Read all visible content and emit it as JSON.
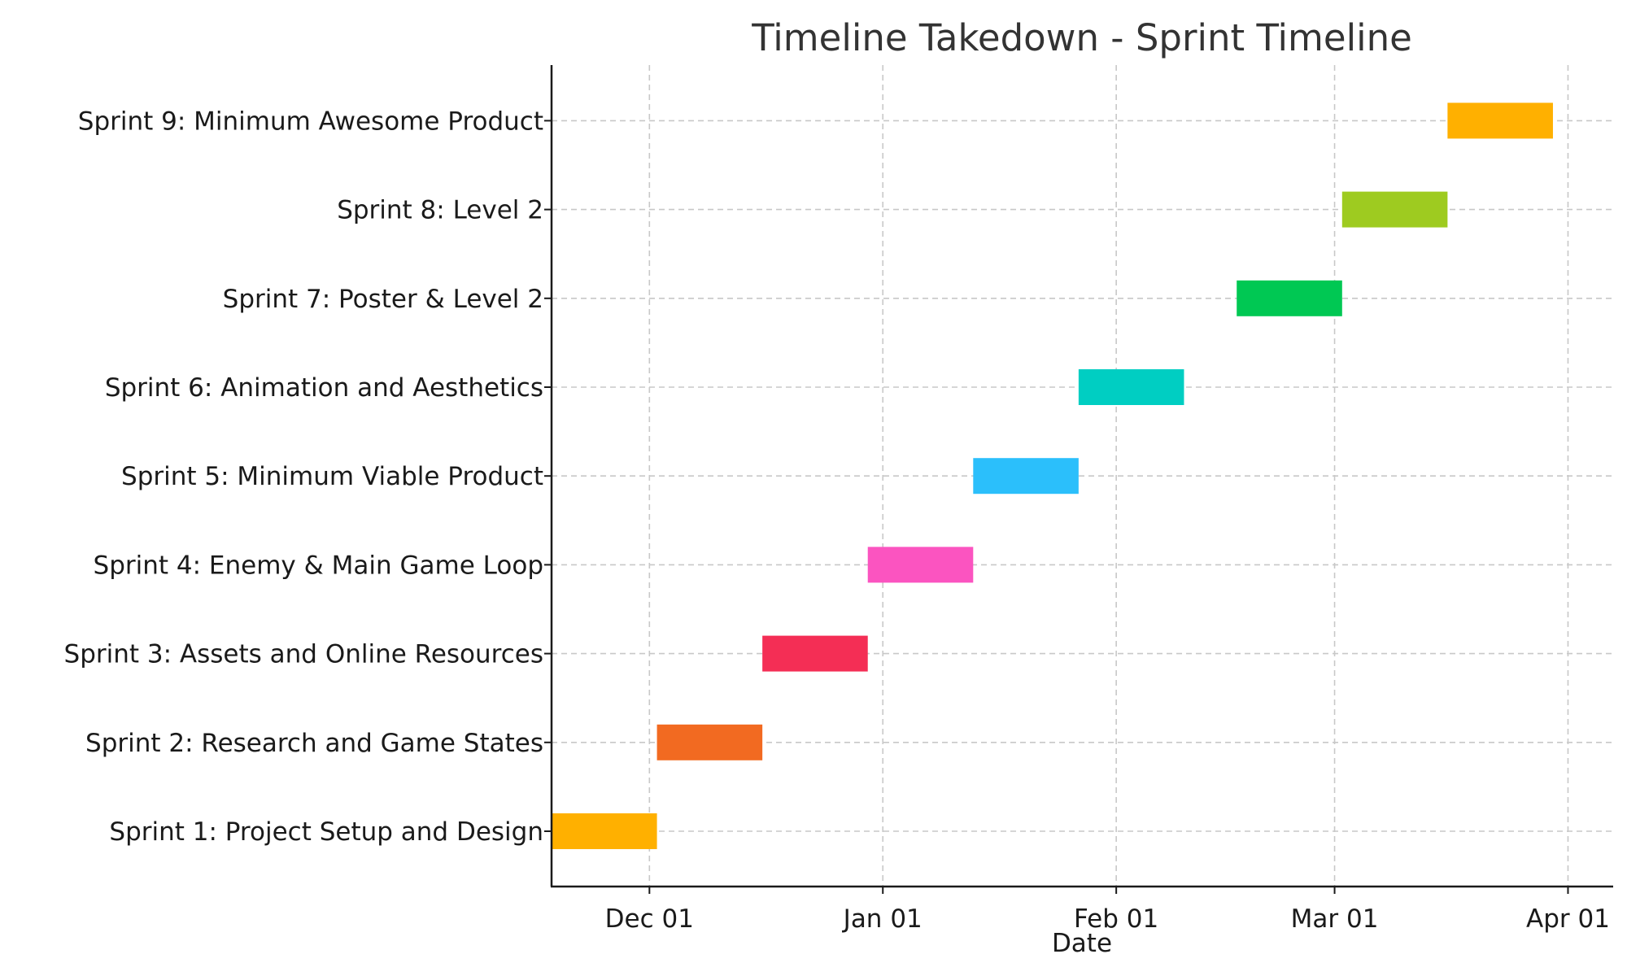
{
  "chart_data": {
    "type": "bar",
    "orientation": "horizontal-gantt",
    "title": "Timeline Takedown - Sprint Timeline",
    "xlabel": "Date",
    "ylabel": "",
    "xlim": [
      "2023-11-18",
      "2024-04-07"
    ],
    "x_ticks": [
      {
        "date": "2023-12-01",
        "label": "Dec 01"
      },
      {
        "date": "2024-01-01",
        "label": "Jan 01"
      },
      {
        "date": "2024-02-01",
        "label": "Feb 01"
      },
      {
        "date": "2024-03-01",
        "label": "Mar 01"
      },
      {
        "date": "2024-04-01",
        "label": "Apr 01"
      }
    ],
    "grid": true,
    "legend": "none",
    "tasks": [
      {
        "name": "Sprint 1: Project Setup and Design",
        "start": "2023-11-18",
        "end": "2023-12-02",
        "color": "#FFB000"
      },
      {
        "name": "Sprint 2: Research and Game States",
        "start": "2023-12-02",
        "end": "2023-12-16",
        "color": "#F26A21"
      },
      {
        "name": "Sprint 3: Assets and Online Resources",
        "start": "2023-12-16",
        "end": "2023-12-30",
        "color": "#F42E55"
      },
      {
        "name": "Sprint 4: Enemy & Main Game Loop",
        "start": "2023-12-30",
        "end": "2024-01-13",
        "color": "#FB54C0"
      },
      {
        "name": "Sprint 5: Minimum Viable Product",
        "start": "2024-01-13",
        "end": "2024-01-27",
        "color": "#2BBFFB"
      },
      {
        "name": "Sprint 6: Animation and Aesthetics",
        "start": "2024-01-27",
        "end": "2024-02-10",
        "color": "#00CEC2"
      },
      {
        "name": "Sprint 7: Poster & Level 2",
        "start": "2024-02-17",
        "end": "2024-03-02",
        "color": "#00C853"
      },
      {
        "name": "Sprint 8: Level 2",
        "start": "2024-03-02",
        "end": "2024-03-16",
        "color": "#9ECB20"
      },
      {
        "name": "Sprint 9: Minimum Awesome Product",
        "start": "2024-03-16",
        "end": "2024-03-30",
        "color": "#FFB000"
      }
    ]
  }
}
